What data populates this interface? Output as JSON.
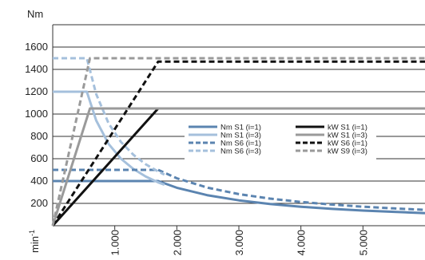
{
  "chart_data": {
    "type": "line",
    "y_unit_label": "Nm",
    "x_unit_label": "min",
    "x_unit_exponent": "-1",
    "x_ticks": [
      {
        "value": 1000,
        "label": "1.000"
      },
      {
        "value": 2000,
        "label": "2.000"
      },
      {
        "value": 3000,
        "label": "3.000"
      },
      {
        "value": 4000,
        "label": "4.000"
      },
      {
        "value": 5000,
        "label": "5.000"
      }
    ],
    "y_ticks": [
      {
        "value": 200,
        "label": "200"
      },
      {
        "value": 400,
        "label": "400"
      },
      {
        "value": 600,
        "label": "600"
      },
      {
        "value": 800,
        "label": "800"
      },
      {
        "value": 1000,
        "label": "1000"
      },
      {
        "value": 1200,
        "label": "1200"
      },
      {
        "value": 1400,
        "label": "1400"
      },
      {
        "value": 1600,
        "label": "1600"
      }
    ],
    "xlim": [
      0,
      6000
    ],
    "ylim": [
      0,
      1800
    ],
    "grid": "horizontal",
    "legend_position": "center-right",
    "series": [
      {
        "name": "Nm S1 (i=1)",
        "color": "#5b84b0",
        "dash": "solid",
        "x": [
          0,
          1700,
          2000,
          2500,
          3000,
          3500,
          4000,
          4500,
          5000,
          5500,
          6000
        ],
        "y": [
          400,
          400,
          340,
          272,
          227,
          194,
          170,
          151,
          136,
          124,
          113
        ]
      },
      {
        "name": "Nm S1 (i=3)",
        "color": "#a5c0dc",
        "dash": "solid",
        "x": [
          0,
          550,
          700,
          900,
          1100,
          1300,
          1500,
          1700,
          1800
        ],
        "y": [
          1200,
          1200,
          943,
          733,
          600,
          508,
          440,
          388,
          367
        ]
      },
      {
        "name": "Nm S6 (i=1)",
        "color": "#5b84b0",
        "dash": "dashed",
        "x": [
          0,
          1700,
          2000,
          2500,
          3000,
          3500,
          4000,
          4500,
          5000,
          5500,
          6000
        ],
        "y": [
          500,
          500,
          425,
          340,
          283,
          243,
          213,
          189,
          170,
          155,
          142
        ]
      },
      {
        "name": "Nm S6 (i=3)",
        "color": "#a5c0dc",
        "dash": "dashed",
        "x": [
          0,
          550,
          700,
          900,
          1100,
          1300,
          1500,
          1700,
          1800
        ],
        "y": [
          1500,
          1500,
          1179,
          917,
          750,
          635,
          550,
          485,
          458
        ]
      },
      {
        "name": "kW S1 (i=1)",
        "color": "#111111",
        "dash": "solid",
        "x": [
          0,
          1700,
          6000
        ],
        "y": [
          0,
          1050,
          1050
        ]
      },
      {
        "name": "kW S1 (i=3)",
        "color": "#9a9a9a",
        "dash": "solid",
        "x": [
          0,
          600,
          6000
        ],
        "y": [
          0,
          1050,
          1050
        ]
      },
      {
        "name": "kW S6 (i=1)",
        "color": "#111111",
        "dash": "dashed",
        "x": [
          0,
          1700,
          6000
        ],
        "y": [
          0,
          1470,
          1470
        ]
      },
      {
        "name": "kW S9 (i=3)",
        "color": "#9a9a9a",
        "dash": "dashed",
        "x": [
          0,
          600,
          6000
        ],
        "y": [
          0,
          1500,
          1500
        ]
      }
    ]
  }
}
